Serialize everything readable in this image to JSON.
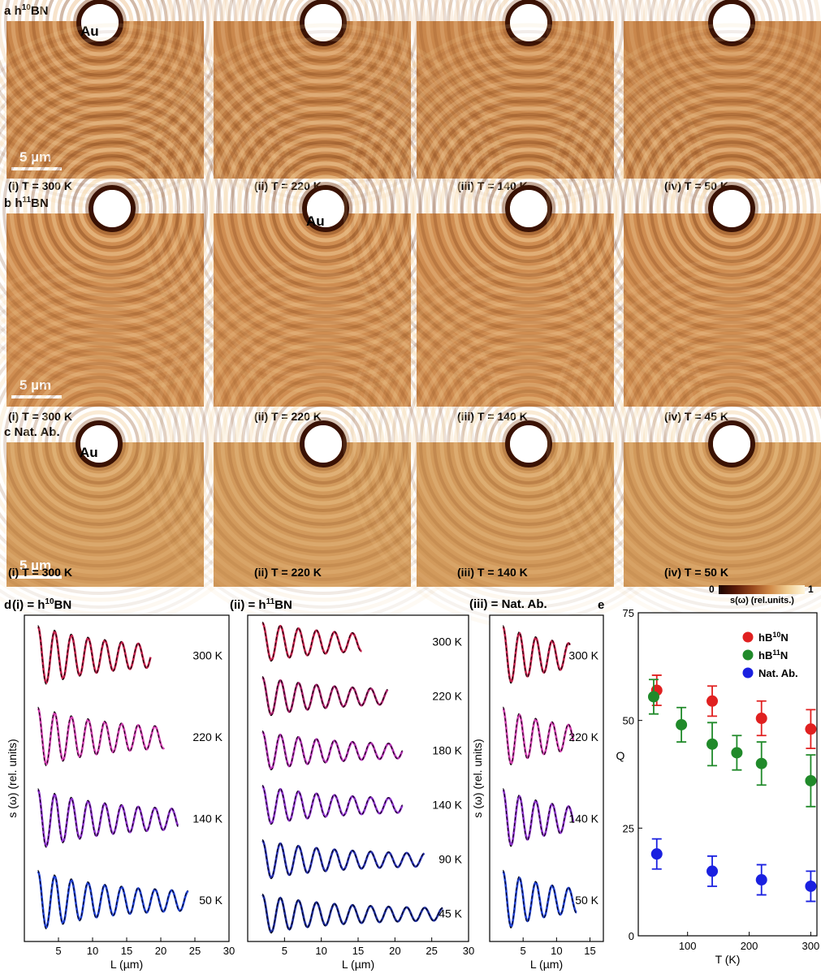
{
  "rows": [
    {
      "id": "a",
      "label_letter": "a",
      "label_pre": "h",
      "label_sup": "10",
      "label_post": "BN",
      "au_label": "Au",
      "au_panel": 0,
      "scale_label": "5 µm",
      "scale_panel": 0,
      "captions": [
        "(i)  T = 300 K",
        "(ii)  T = 220 K",
        "(iii)   T = 140 K",
        "(iv)  T = 50 K"
      ]
    },
    {
      "id": "b",
      "label_letter": "b",
      "label_pre": "h",
      "label_sup": "11",
      "label_post": "BN",
      "au_label": "Au",
      "au_panel": 1,
      "scale_label": "5 µm",
      "scale_panel": 0,
      "captions": [
        "(i)   T = 300 K",
        "(ii)   T = 220 K",
        "(iii)   T = 140 K",
        "(iv)   T = 45 K"
      ]
    },
    {
      "id": "c",
      "label_letter": "c",
      "label_pre": "Nat. Ab.",
      "label_sup": "",
      "label_post": "",
      "au_label": "Au",
      "au_panel": 0,
      "scale_label": "5 µm",
      "scale_panel": 0,
      "captions": [
        "(i)   T = 300 K",
        "(ii)   T = 220 K",
        "(iii)   T = 140 K",
        "(iv)   T = 50 K"
      ]
    }
  ],
  "colorbar": {
    "min_label": "0",
    "max_label": "1",
    "label": "s(ω) (rel.units.)",
    "colors": [
      "#1a0400",
      "#5a1a08",
      "#9a4a1e",
      "#d08a48",
      "#f0cc90",
      "#fff6dc"
    ]
  },
  "panel_d": {
    "letter": "d",
    "subpanels": [
      {
        "title_pre": "(i) = h",
        "title_sup": "10",
        "title_post": "BN",
        "ylabel": "s (ω) (rel. units)",
        "xlabel": "L (µm)",
        "xlim": [
          0,
          30
        ],
        "xticks": [
          "5",
          "10",
          "15",
          "20",
          "25",
          "30"
        ],
        "traces": [
          {
            "temp": "300 K",
            "xmax": 18.5,
            "color": "#c0204a"
          },
          {
            "temp": "220 K",
            "xmax": 20.5,
            "color": "#d040b0"
          },
          {
            "temp": "140 K",
            "xmax": 22.5,
            "color": "#8a30c8"
          },
          {
            "temp": "50 K",
            "xmax": 24.0,
            "color": "#2040d0"
          }
        ]
      },
      {
        "title_pre": "(ii) = h",
        "title_sup": "11",
        "title_post": "BN",
        "ylabel": "",
        "xlabel": "L (µm)",
        "xlim": [
          0,
          30
        ],
        "xticks": [
          "5",
          "10",
          "15",
          "20",
          "25",
          "30"
        ],
        "traces": [
          {
            "temp": "300 K",
            "xmax": 15.5,
            "color": "#c0204a"
          },
          {
            "temp": "220 K",
            "xmax": 19.0,
            "color": "#a8206a"
          },
          {
            "temp": "180 K",
            "xmax": 21.0,
            "color": "#b030b0"
          },
          {
            "temp": "140 K",
            "xmax": 21.0,
            "color": "#8a30c8"
          },
          {
            "temp": "90 K",
            "xmax": 24.0,
            "color": "#2830b0"
          },
          {
            "temp": "45 K",
            "xmax": 26.5,
            "color": "#1a2a9a"
          }
        ]
      },
      {
        "title_pre": "(iii) = Nat. Ab.",
        "title_sup": "",
        "title_post": "",
        "ylabel": "s (ω) (rel. units)",
        "xlabel": "L (µm)",
        "xlim": [
          0,
          17
        ],
        "xticks": [
          "5",
          "10",
          "15"
        ],
        "traces": [
          {
            "temp": "300 K",
            "xmax": 12.0,
            "color": "#c0204a"
          },
          {
            "temp": "220 K",
            "xmax": 12.5,
            "color": "#d040b0"
          },
          {
            "temp": "140 K",
            "xmax": 12.5,
            "color": "#8a30c8"
          },
          {
            "temp": "50 K",
            "xmax": 13.0,
            "color": "#2040d0"
          }
        ]
      }
    ]
  },
  "chart_data": {
    "type": "scatter",
    "panel_letter": "e",
    "xlabel": "T (K)",
    "ylabel": "Q",
    "xlim": [
      20,
      310
    ],
    "ylim": [
      0,
      75
    ],
    "xticks": [
      "100",
      "200",
      "300"
    ],
    "yticks": [
      "0",
      "25",
      "50",
      "75"
    ],
    "legend_position": "top-right",
    "series": [
      {
        "name_pre": "hB",
        "name_sup": "10",
        "name_post": "N",
        "color": "#e02020",
        "x": [
          50,
          140,
          220,
          300
        ],
        "y": [
          57,
          54.5,
          50.5,
          48
        ],
        "err": [
          3.5,
          3.5,
          4,
          4.5
        ]
      },
      {
        "name_pre": "hB",
        "name_sup": "11",
        "name_post": "N",
        "color": "#208a2a",
        "x": [
          45,
          90,
          140,
          180,
          220,
          300
        ],
        "y": [
          55.5,
          49,
          44.5,
          42.5,
          40,
          36
        ],
        "err": [
          4,
          4,
          5,
          4,
          5,
          6
        ]
      },
      {
        "name_pre": "Nat. Ab.",
        "name_sup": "",
        "name_post": "",
        "color": "#1a20e0",
        "x": [
          50,
          140,
          220,
          300
        ],
        "y": [
          19,
          15,
          13,
          11.5
        ],
        "err": [
          3.5,
          3.5,
          3.5,
          3.5
        ]
      }
    ]
  }
}
